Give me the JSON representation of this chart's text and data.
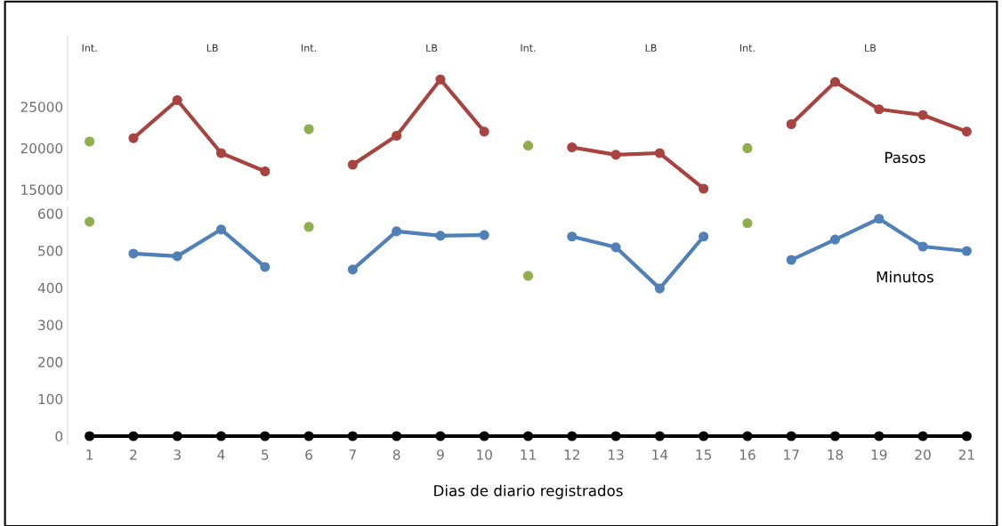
{
  "chart_data": [
    {
      "type": "line",
      "categories": [
        "1",
        "2",
        "3",
        "4",
        "5",
        "6",
        "7",
        "8",
        "9",
        "10",
        "11",
        "12",
        "13",
        "14",
        "15",
        "16",
        "17",
        "18",
        "19",
        "20",
        "21"
      ],
      "ylim": [
        13700,
        33600
      ],
      "yticks": [
        15000,
        20000,
        25000
      ],
      "tick_labels": "y",
      "grid": false,
      "marker": "circle",
      "series": [
        {
          "name": "Pasos",
          "color": "#a8433f",
          "values": [
            null,
            21200,
            25800,
            19400,
            17200,
            null,
            18000,
            21500,
            28300,
            22000,
            null,
            20100,
            19200,
            19400,
            15100,
            null,
            22900,
            28000,
            24700,
            24000,
            22000
          ]
        },
        {
          "type": "scatter",
          "color": "#8faf4f",
          "values": [
            20800,
            null,
            null,
            null,
            null,
            22300,
            null,
            null,
            null,
            null,
            20300,
            null,
            null,
            null,
            null,
            20000,
            null,
            null,
            null,
            null,
            null
          ]
        }
      ],
      "annotations": [
        "Int.",
        "LB",
        "Int.",
        "LB",
        "Int.",
        "LB",
        "Int.",
        "LB"
      ]
    },
    {
      "type": "line",
      "categories": [
        "1",
        "2",
        "3",
        "4",
        "5",
        "6",
        "7",
        "8",
        "9",
        "10",
        "11",
        "12",
        "13",
        "14",
        "15",
        "16",
        "17",
        "18",
        "19",
        "20",
        "21"
      ],
      "xlabel": "Dias de diario registrados",
      "ylim": [
        -24,
        619
      ],
      "yticks": [
        0,
        100,
        200,
        300,
        400,
        500,
        600
      ],
      "grid": false,
      "marker": "circle",
      "series": [
        {
          "name": "Minutos",
          "color": "#5080b8",
          "values": [
            null,
            492,
            485,
            557,
            456,
            null,
            449,
            552,
            540,
            542,
            null,
            538,
            509,
            398,
            538,
            null,
            475,
            530,
            586,
            511,
            499
          ]
        },
        {
          "type": "scatter",
          "color": "#8faf4f",
          "values": [
            578,
            null,
            null,
            null,
            null,
            564,
            null,
            null,
            null,
            null,
            432,
            null,
            null,
            null,
            null,
            574,
            null,
            null,
            null,
            null,
            null
          ]
        },
        {
          "color": "#000000",
          "values": [
            0,
            0,
            0,
            0,
            0,
            0,
            0,
            0,
            0,
            0,
            0,
            0,
            0,
            0,
            0,
            0,
            0,
            0,
            0,
            0,
            0
          ]
        }
      ]
    }
  ]
}
